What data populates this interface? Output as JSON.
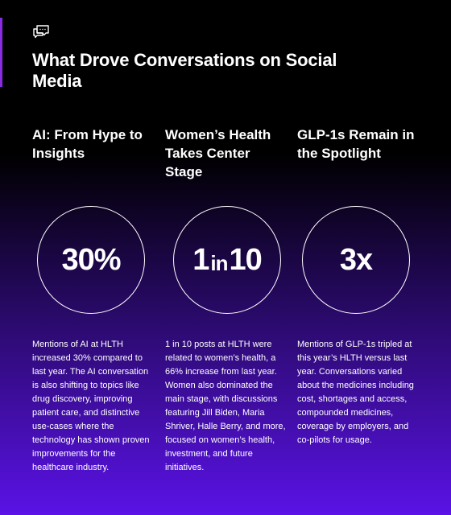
{
  "header": {
    "icon": "chat-bubbles-icon",
    "title": "What Drove Conversations on Social Media"
  },
  "colors": {
    "background_top": "#000000",
    "background_bottom": "#5a12e6",
    "accent_bar": "#8a2be2",
    "text": "#ffffff"
  },
  "columns": [
    {
      "heading": "AI: From Hype to Insights",
      "stat": "30%",
      "description": "Mentions of AI at HLTH increased 30% compared to last year. The AI conversation is also shifting to topics like drug discovery, improving patient care, and distinctive use-cases where the technology has shown proven improvements for the healthcare industry."
    },
    {
      "heading": "Women’s Health Takes Center Stage",
      "stat_parts": [
        "1",
        "in",
        "10"
      ],
      "description": "1 in 10 posts at HLTH were related to women’s health, a 66% increase from last year. Women also dominated the main stage, with discussions featuring Jill Biden, Maria Shriver, Halle Berry, and more, focused on women’s health, investment, and future initiatives."
    },
    {
      "heading": "GLP-1s Remain in the Spotlight",
      "stat": "3x",
      "description": "Mentions of GLP-1s tripled at this year’s HLTH versus last year. Conversations varied about the medicines including cost, shortages and access, compounded medicines, coverage by employers, and co-pilots for usage."
    }
  ]
}
